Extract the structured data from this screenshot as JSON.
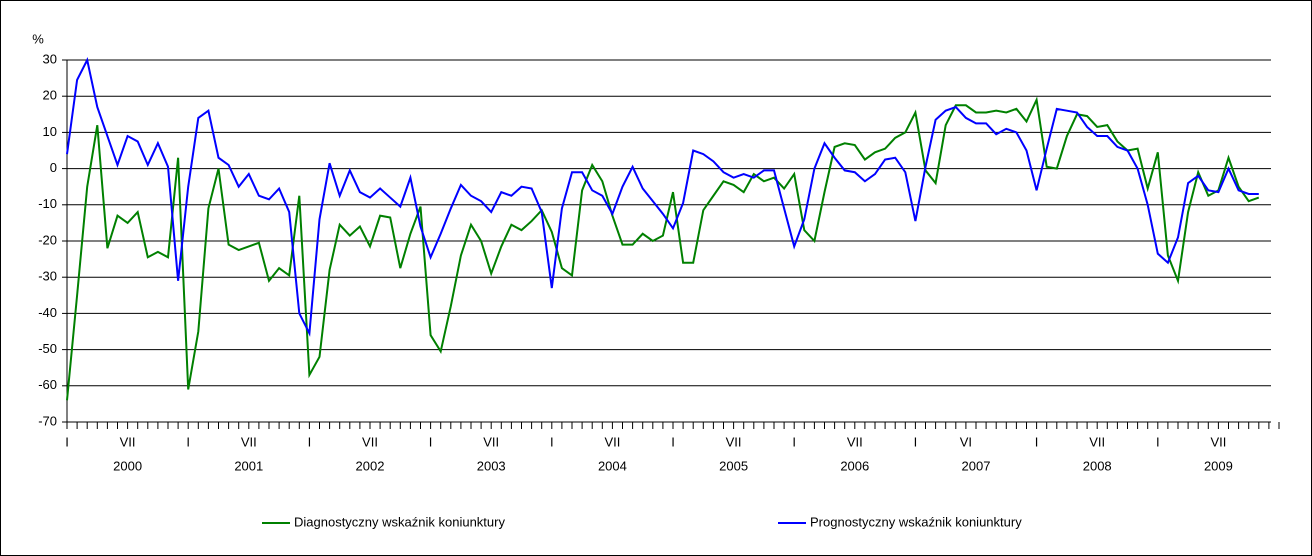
{
  "chart_data": {
    "type": "line",
    "y_label": "%",
    "categories": [
      "I",
      null,
      null,
      null,
      null,
      null,
      "VII",
      null,
      null,
      null,
      null,
      null,
      "I",
      null,
      null,
      null,
      null,
      null,
      "VII",
      null,
      null,
      null,
      null,
      null,
      "I",
      null,
      null,
      null,
      null,
      null,
      "VII",
      null,
      null,
      null,
      null,
      null,
      "I",
      null,
      null,
      null,
      null,
      null,
      "VII",
      null,
      null,
      null,
      null,
      null,
      "I",
      null,
      null,
      null,
      null,
      null,
      "VII",
      null,
      null,
      null,
      null,
      null,
      "I",
      null,
      null,
      null,
      null,
      null,
      "VII",
      null,
      null,
      null,
      null,
      null,
      "I",
      null,
      null,
      null,
      null,
      null,
      "VII",
      null,
      null,
      null,
      null,
      null,
      "I",
      null,
      null,
      null,
      null,
      "VI",
      null,
      null,
      null,
      null,
      null,
      null,
      "I",
      null,
      null,
      null,
      null,
      null,
      "VII",
      null,
      null,
      null,
      null,
      null,
      "I",
      null,
      null,
      null,
      null,
      null,
      "VII",
      null,
      null,
      null,
      null,
      null
    ],
    "years": [
      "2000",
      "2001",
      "2002",
      "2003",
      "2004",
      "2005",
      "2006",
      "2007",
      "2008",
      "2009"
    ],
    "series": [
      {
        "name": "Diagnostyczny wskaźnik koniunktury",
        "color": "#008000",
        "values": [
          -64,
          -35,
          -5,
          12,
          -22,
          -13,
          -15,
          -12,
          -24.5,
          -23,
          -24.5,
          3,
          -61,
          -45,
          -11,
          0,
          -21,
          -22.5,
          -21.5,
          -20.5,
          -31,
          -27.5,
          -29.5,
          -7.5,
          -57,
          -52,
          -28,
          -15.5,
          -18.5,
          -16,
          -21.5,
          -13,
          -13.5,
          -27.5,
          -18,
          -10.5,
          -46,
          -50.5,
          -38,
          -24,
          -15.5,
          -20,
          -29,
          -21.5,
          -15.5,
          -17,
          -14.5,
          -11.5,
          -17.5,
          -27.5,
          -29.5,
          -6,
          1,
          -3.5,
          -13,
          -21,
          -21,
          -18,
          -20,
          -18.5,
          -6.5,
          -26,
          -26,
          -11.5,
          -7.5,
          -3.5,
          -4.5,
          -6.5,
          -1.5,
          -3.5,
          -2.5,
          -5.5,
          -1.5,
          -17,
          -20,
          -6.5,
          6,
          7,
          6.5,
          2.5,
          4.5,
          5.5,
          8.5,
          10,
          15.5,
          -0.5,
          -4,
          12,
          17.5,
          17.5,
          15.5,
          15.5,
          16,
          15.5,
          16.5,
          13,
          19,
          0.5,
          0,
          9,
          15,
          14.5,
          11.5,
          12,
          7.5,
          5,
          5.5,
          -5.5,
          4.5,
          -24,
          -31,
          -12,
          -1,
          -7.5,
          -6,
          3,
          -5,
          -9,
          -8,
          null
        ]
      },
      {
        "name": "Prognostyczny wskaźnik koniunktury",
        "color": "#0000ff",
        "values": [
          4,
          24.5,
          30,
          17,
          9,
          1,
          9,
          7.5,
          1,
          7,
          0.5,
          -31,
          -5,
          14,
          16,
          3,
          1,
          -5,
          -1.5,
          -7.5,
          -8.5,
          -5.5,
          -12,
          -40,
          -45.5,
          -14,
          1.5,
          -7.5,
          -0.5,
          -6.5,
          -8,
          -5.5,
          -8,
          -10.5,
          -2.5,
          -16,
          -24.5,
          -18,
          -11,
          -4.5,
          -7.5,
          -9,
          -12,
          -6.5,
          -7.5,
          -5,
          -5.5,
          -12,
          -33,
          -11,
          -1,
          -1,
          -6,
          -7.5,
          -12.5,
          -5,
          0.5,
          -5.5,
          -9,
          -12.5,
          -16.5,
          -9.5,
          5,
          4,
          2,
          -1,
          -2.5,
          -1.5,
          -2.5,
          -0.5,
          -0.5,
          -11,
          -21.5,
          -14,
          0,
          7,
          3,
          -0.5,
          -1,
          -3.5,
          -1.5,
          2.5,
          3,
          -1,
          -14.5,
          0.5,
          13.5,
          16,
          17,
          14,
          12.5,
          12.5,
          9.5,
          11,
          10,
          5,
          -6,
          5.5,
          16.5,
          16,
          15.5,
          11.5,
          9,
          9,
          6,
          5,
          0,
          -10,
          -23.5,
          -26,
          -19,
          -4,
          -2,
          -6,
          -6.5,
          0,
          -6,
          -7,
          -7,
          null
        ]
      }
    ],
    "ylim": [
      -70,
      30
    ],
    "yticks": [
      -70,
      -60,
      -50,
      -40,
      -30,
      -20,
      -10,
      0,
      10,
      20,
      30
    ],
    "grid": true,
    "legend": "bottom"
  }
}
